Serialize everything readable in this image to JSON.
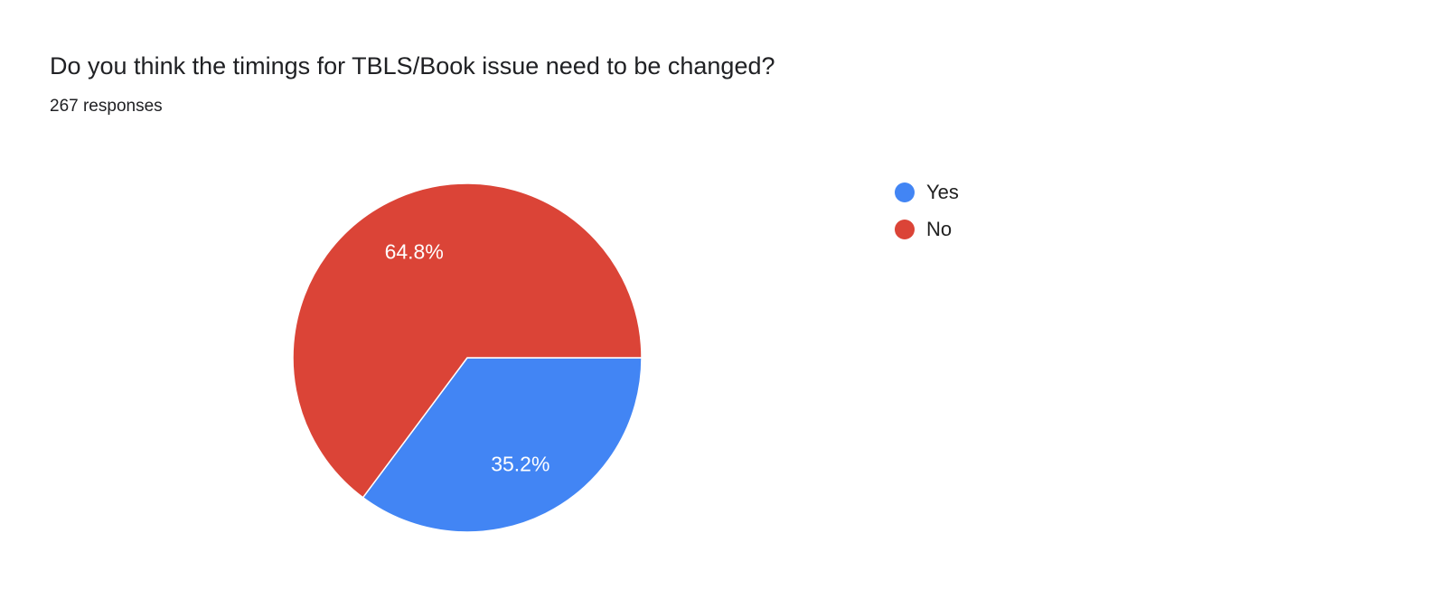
{
  "header": {
    "title": "Do you think the timings for TBLS/Book issue need to be changed?",
    "subtitle": "267 responses"
  },
  "chart_data": {
    "type": "pie",
    "title": "Do you think the timings for TBLS/Book issue need to be changed?",
    "subtitle": "267 responses",
    "series": [
      {
        "name": "Yes",
        "value": 35.2,
        "label": "35.2%",
        "color": "#4285f4"
      },
      {
        "name": "No",
        "value": 64.8,
        "label": "64.8%",
        "color": "#db4437"
      }
    ],
    "start_angle_deg": 90,
    "legend_position": "right",
    "legend_entries": [
      "Yes",
      "No"
    ],
    "slice_label_color": "#ffffff",
    "slice_label_font_size": 23,
    "slice_border_color": "#ffffff",
    "background_color": "#ffffff"
  }
}
